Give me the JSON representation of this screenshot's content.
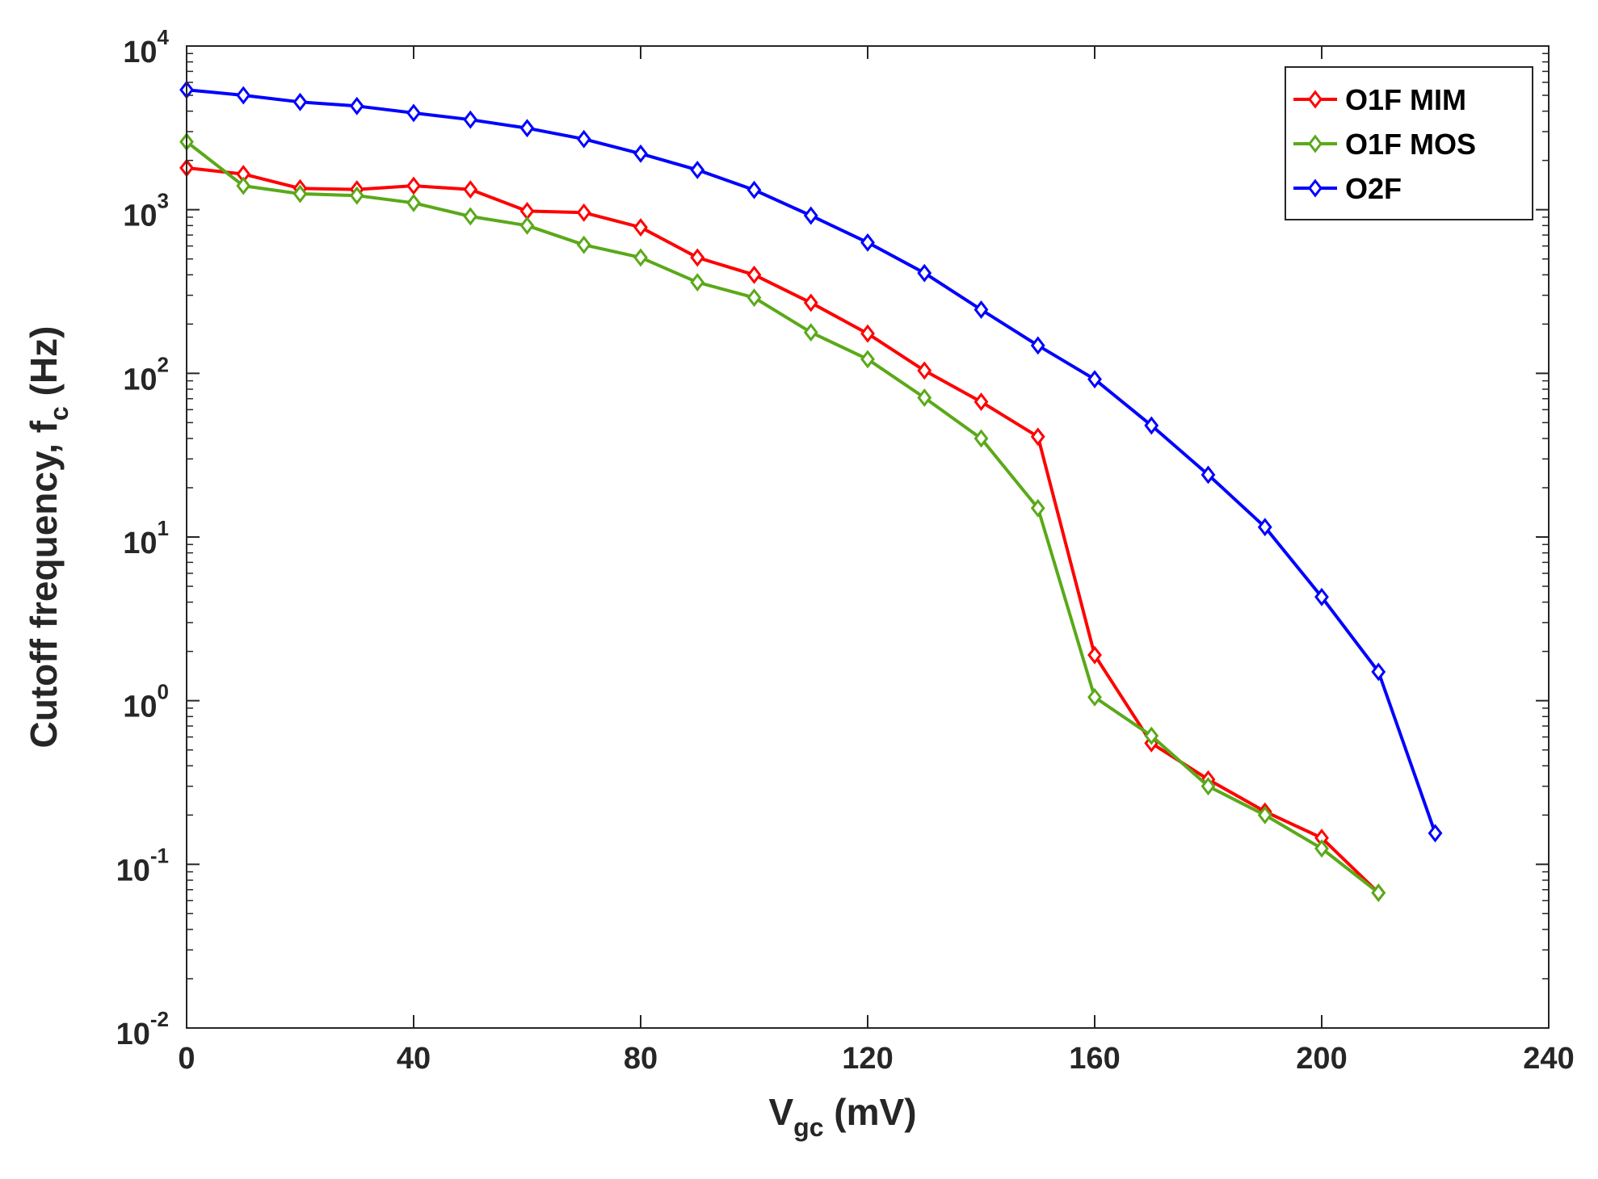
{
  "chart_data": {
    "type": "line",
    "title": "",
    "xlabel": {
      "main": "V",
      "sub": "gc",
      "rest": " (mV)"
    },
    "ylabel": {
      "main": "Cutoff frequency, f",
      "sub": "c",
      "rest": " (Hz)"
    },
    "xlim": [
      0,
      240
    ],
    "ylim": [
      0.01,
      10000
    ],
    "yscale": "log",
    "grid": false,
    "legend_position": "top-right",
    "x_ticks": [
      "0",
      "40",
      "80",
      "120",
      "160",
      "200",
      "240"
    ],
    "y_ticks": [
      {
        "base": "10",
        "exp": "4"
      },
      {
        "base": "10",
        "exp": "3"
      },
      {
        "base": "10",
        "exp": "2"
      },
      {
        "base": "10",
        "exp": "1"
      },
      {
        "base": "10",
        "exp": "0"
      },
      {
        "base": "10",
        "exp": "-1"
      },
      {
        "base": "10",
        "exp": "-2"
      }
    ],
    "series": [
      {
        "name": "O1F MIM",
        "color": "#ff0000",
        "marker": "diamond",
        "x": [
          0,
          10,
          20,
          30,
          40,
          50,
          60,
          70,
          80,
          90,
          100,
          110,
          120,
          130,
          140,
          150,
          160,
          170,
          180,
          190,
          200,
          210
        ],
        "y": [
          1800,
          1650,
          1350,
          1330,
          1400,
          1330,
          980,
          960,
          780,
          510,
          400,
          270,
          175,
          104,
          67,
          41,
          1.9,
          0.55,
          0.33,
          0.21,
          0.145,
          0.067
        ]
      },
      {
        "name": "O1F MOS",
        "color": "#5aa919",
        "marker": "diamond",
        "x": [
          0,
          10,
          20,
          30,
          40,
          50,
          60,
          70,
          80,
          90,
          100,
          110,
          120,
          130,
          140,
          150,
          160,
          170,
          180,
          190,
          200,
          210
        ],
        "y": [
          2600,
          1400,
          1250,
          1220,
          1100,
          910,
          800,
          610,
          510,
          360,
          290,
          178,
          122,
          71,
          40,
          15,
          1.05,
          0.61,
          0.3,
          0.2,
          0.125,
          0.067
        ]
      },
      {
        "name": "O2F",
        "color": "#0000ff",
        "marker": "diamond",
        "x": [
          0,
          10,
          20,
          30,
          40,
          50,
          60,
          70,
          80,
          90,
          100,
          110,
          120,
          130,
          140,
          150,
          160,
          170,
          180,
          190,
          200,
          210,
          220
        ],
        "y": [
          5400,
          5000,
          4550,
          4300,
          3900,
          3550,
          3150,
          2700,
          2200,
          1750,
          1320,
          920,
          630,
          410,
          245,
          148,
          92,
          48,
          24,
          11.5,
          4.3,
          1.5,
          0.155
        ]
      }
    ]
  }
}
